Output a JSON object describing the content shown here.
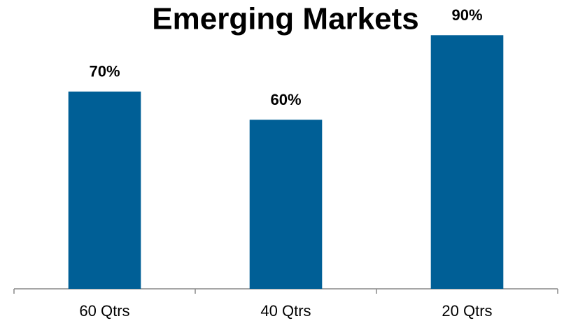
{
  "chart_data": {
    "type": "bar",
    "title": "Emerging Markets",
    "categories": [
      "60 Qtrs",
      "40 Qtrs",
      "20 Qtrs"
    ],
    "values": [
      70,
      60,
      90
    ],
    "value_labels": [
      "70%",
      "60%",
      "90%"
    ],
    "color": "#005f96"
  }
}
